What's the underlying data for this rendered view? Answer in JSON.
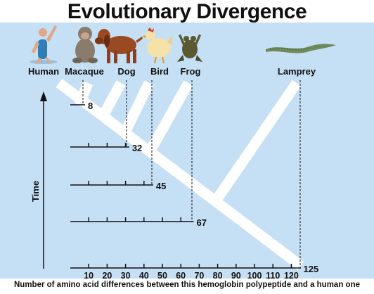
{
  "title": "Evolutionary Divergence",
  "caption": "Number of amino acid differences between this hemoglobin polypeptide and a human one",
  "time_axis_label": "Time",
  "species": [
    {
      "name": "Human",
      "icon": "human-icon"
    },
    {
      "name": "Macaque",
      "icon": "macaque-icon"
    },
    {
      "name": "Dog",
      "icon": "dog-icon"
    },
    {
      "name": "Bird",
      "icon": "bird-icon"
    },
    {
      "name": "Frog",
      "icon": "frog-icon"
    },
    {
      "name": "Lamprey",
      "icon": "lamprey-icon"
    }
  ],
  "axis_ticks": [
    "10",
    "20",
    "30",
    "40",
    "50",
    "60",
    "70",
    "80",
    "90",
    "100",
    "110",
    "120"
  ],
  "differences": [
    {
      "species": "Macaque",
      "value": 8
    },
    {
      "species": "Dog",
      "value": 32
    },
    {
      "species": "Bird",
      "value": 45
    },
    {
      "species": "Frog",
      "value": 67
    },
    {
      "species": "Lamprey",
      "value": 125
    }
  ],
  "colors": {
    "background": "#c5dff5",
    "tree": "#ffffff",
    "text": "#111111"
  }
}
